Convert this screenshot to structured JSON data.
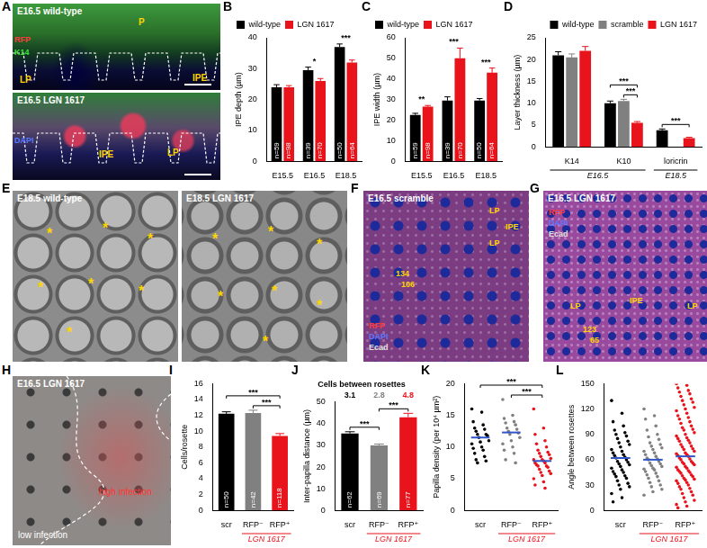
{
  "chart_data": [
    {
      "panel": "B",
      "type": "bar",
      "y_label": "IPE depth (µm)",
      "categories": [
        "E15.5",
        "E16.5",
        "E18.5"
      ],
      "series": [
        {
          "name": "wild-type",
          "color": "#000000",
          "values": [
            24,
            29.5,
            37
          ],
          "errors": [
            0.8,
            1,
            1
          ],
          "n_labels": [
            "n=59",
            "n=39",
            "n=50"
          ]
        },
        {
          "name": "LGN 1617",
          "color": "#e8131b",
          "values": [
            24,
            26,
            32
          ],
          "errors": [
            0.5,
            0.8,
            0.8
          ],
          "n_labels": [
            "n=98",
            "n=70",
            "n=64"
          ]
        }
      ],
      "significance": [
        null,
        "*",
        "***"
      ],
      "ylim": [
        0,
        40
      ],
      "yticks": [
        0,
        10,
        20,
        30,
        40
      ],
      "grid": false,
      "legend": "upper left"
    },
    {
      "panel": "C",
      "type": "bar",
      "y_label": "IPE width (µm)",
      "categories": [
        "E15.5",
        "E16.5",
        "E18.5"
      ],
      "series": [
        {
          "name": "wild-type",
          "color": "#000000",
          "values": [
            22.5,
            29.5,
            29.5
          ],
          "errors": [
            0.8,
            1.8,
            1
          ],
          "n_labels": [
            "n=59",
            "n=39",
            "n=50"
          ]
        },
        {
          "name": "LGN 1617",
          "color": "#e8131b",
          "values": [
            26.5,
            50,
            43
          ],
          "errors": [
            0.6,
            5,
            2.3
          ],
          "n_labels": [
            "n=98",
            "n=70",
            "n=64"
          ]
        }
      ],
      "significance": [
        "**",
        "***",
        "***"
      ],
      "ylim": [
        0,
        60
      ],
      "yticks": [
        0,
        10,
        20,
        30,
        40,
        50,
        60
      ],
      "grid": false,
      "legend": "upper left"
    },
    {
      "panel": "D",
      "type": "bar",
      "y_label": "Layer thickness (µm)",
      "categories": [
        "K14",
        "K10",
        "loricrin"
      ],
      "category_groups": [
        {
          "label": "E16.5",
          "categories": [
            "K14",
            "K10"
          ],
          "color": "#000000"
        },
        {
          "label": "E18.5",
          "categories": [
            "loricrin"
          ],
          "color": "#000000"
        }
      ],
      "series": [
        {
          "name": "wild-type",
          "color": "#000000",
          "values": [
            21,
            10,
            3.8
          ],
          "errors": [
            0.8,
            0.5,
            0.3
          ]
        },
        {
          "name": "scramble",
          "color": "#808080",
          "values": [
            20.5,
            10.5,
            null
          ],
          "errors": [
            0.8,
            0.4,
            null
          ]
        },
        {
          "name": "LGN 1617",
          "color": "#e8131b",
          "values": [
            22,
            5.5,
            2
          ],
          "errors": [
            1,
            0.3,
            0.2
          ]
        }
      ],
      "significance": [
        {
          "category": "K10",
          "from": "scramble",
          "to": "LGN 1617",
          "label": "***"
        },
        {
          "category": "K10",
          "from": "wild-type",
          "to": "LGN 1617",
          "label": "***"
        },
        {
          "category": "loricrin",
          "from": "wild-type",
          "to": "LGN 1617",
          "label": "***"
        }
      ],
      "ylim": [
        0,
        25
      ],
      "yticks": [
        0,
        5,
        10,
        15,
        20,
        25
      ],
      "grid": false,
      "legend": "upper right"
    },
    {
      "panel": "I",
      "type": "bar",
      "y_label": "Cells/rosette",
      "categories": [
        "scr",
        "RFP⁻",
        "RFP⁺"
      ],
      "category_groups": [
        {
          "label": "LGN 1617",
          "categories": [
            "RFP⁻",
            "RFP⁺"
          ],
          "color": "#e8131b"
        }
      ],
      "values": [
        12.2,
        12.3,
        9.4
      ],
      "colors": [
        "#000000",
        "#808080",
        "#e8131b"
      ],
      "errors": [
        0.25,
        0.35,
        0.3
      ],
      "n_labels": [
        "n=50",
        "n=42",
        "n=118"
      ],
      "significance": [
        {
          "from": "RFP⁻",
          "to": "RFP⁺",
          "label": "***"
        },
        {
          "from": "scr",
          "to": "RFP⁺",
          "label": "***"
        }
      ],
      "ylim": [
        0,
        16
      ],
      "yticks": [
        0,
        2,
        4,
        6,
        8,
        10,
        12,
        14,
        16
      ],
      "grid": false
    },
    {
      "panel": "J",
      "type": "bar",
      "title": "Cells between rosettes",
      "y_label": "Inter-papilla distance (µm)",
      "categories": [
        "scr",
        "RFP⁻",
        "RFP⁺"
      ],
      "category_groups": [
        {
          "label": "LGN 1617",
          "categories": [
            "RFP⁻",
            "RFP⁺"
          ],
          "color": "#e8131b"
        }
      ],
      "cells_between": [
        3.1,
        2.8,
        4.8
      ],
      "values": [
        35.5,
        30,
        43
      ],
      "colors": [
        "#000000",
        "#808080",
        "#e8131b"
      ],
      "errors": [
        0.8,
        0.6,
        1.8
      ],
      "n_labels": [
        "n=62",
        "n=69",
        "n=77"
      ],
      "significance": [
        {
          "from": "scr",
          "to": "RFP⁻",
          "label": "***"
        },
        {
          "from": "RFP⁻",
          "to": "RFP⁺",
          "label": "***"
        }
      ],
      "ylim": [
        0,
        50
      ],
      "yticks": [
        0,
        10,
        20,
        30,
        40,
        50
      ],
      "grid": false
    },
    {
      "panel": "K",
      "type": "scatter",
      "y_label": "Papilla density (per 10⁴ µm²)",
      "categories": [
        "scr",
        "RFP⁻",
        "RFP⁺"
      ],
      "category_groups": [
        {
          "label": "LGN 1617",
          "categories": [
            "RFP⁻",
            "RFP⁺"
          ],
          "color": "#e8131b"
        }
      ],
      "colors": [
        "#000000",
        "#808080",
        "#e8131b"
      ],
      "values": [
        [
          16,
          15.5,
          14,
          13.5,
          13,
          12.8,
          12.5,
          12,
          12,
          11.8,
          11.5,
          11,
          10.8,
          10.5,
          10,
          9.8,
          9.5,
          9,
          8.5,
          8,
          7.8,
          7.5
        ],
        [
          17.5,
          15,
          14.5,
          14,
          13.8,
          13.5,
          13,
          12.8,
          12.5,
          12.2,
          12,
          11.5,
          11,
          10.5,
          10,
          9.5,
          9,
          8,
          7.5
        ],
        [
          16,
          13,
          12,
          11,
          10.5,
          10,
          9.5,
          9.2,
          9,
          8.8,
          8.5,
          8.2,
          8,
          8,
          7.8,
          7.5,
          7.5,
          7.2,
          7,
          7,
          6.8,
          6.5,
          6.2,
          6,
          5.8,
          5.5,
          5,
          4.5,
          4,
          3.5
        ]
      ],
      "means": [
        11.5,
        12.3,
        7.8
      ],
      "significance": [
        {
          "from": "RFP⁻",
          "to": "RFP⁺",
          "label": "***"
        },
        {
          "from": "scr",
          "to": "RFP⁺",
          "label": "***"
        }
      ],
      "ylim": [
        0,
        20
      ],
      "yticks": [
        0,
        5,
        10,
        15,
        20
      ],
      "grid": false
    },
    {
      "panel": "L",
      "type": "scatter",
      "y_label": "Angle between rosettes",
      "categories": [
        "scr",
        "RFP⁻",
        "RFP⁺"
      ],
      "category_groups": [
        {
          "label": "LGN 1617",
          "categories": [
            "RFP⁻",
            "RFP⁺"
          ],
          "color": "#e8131b"
        }
      ],
      "colors": [
        "#000000",
        "#808080",
        "#e8131b"
      ],
      "values": [
        [
          130,
          115,
          105,
          100,
          95,
          92,
          90,
          88,
          85,
          82,
          80,
          78,
          75,
          72,
          70,
          68,
          66,
          65,
          63,
          62,
          60,
          58,
          57,
          55,
          54,
          52,
          50,
          48,
          46,
          45,
          43,
          41,
          40,
          38,
          35,
          32,
          30,
          28,
          25,
          20,
          15,
          10
        ],
        [
          120,
          112,
          108,
          100,
          95,
          90,
          87,
          84,
          80,
          78,
          76,
          74,
          72,
          70,
          68,
          66,
          64,
          62,
          61,
          60,
          58,
          56,
          55,
          53,
          52,
          50,
          49,
          48,
          46,
          44,
          42,
          40,
          38,
          35,
          33,
          30,
          28,
          25,
          22,
          18
        ],
        [
          150,
          148,
          145,
          142,
          140,
          138,
          135,
          132,
          130,
          128,
          125,
          122,
          120,
          118,
          115,
          112,
          110,
          108,
          105,
          103,
          100,
          98,
          96,
          95,
          92,
          90,
          88,
          86,
          85,
          83,
          82,
          80,
          78,
          76,
          75,
          73,
          72,
          70,
          68,
          67,
          66,
          65,
          64,
          62,
          61,
          60,
          58,
          57,
          56,
          55,
          54,
          52,
          51,
          50,
          48,
          47,
          46,
          45,
          44,
          42,
          41,
          40,
          38,
          37,
          36,
          35,
          33,
          32,
          30,
          28,
          26,
          25,
          22,
          20,
          18,
          15,
          12,
          10,
          7,
          5,
          3
        ]
      ],
      "means": [
        62,
        60,
        64
      ],
      "ylim": [
        0,
        150
      ],
      "yticks": [
        0,
        30,
        60,
        90,
        120,
        150
      ],
      "grid": false
    }
  ],
  "images": [
    {
      "panel": "A",
      "subpanels": [
        {
          "title": "E16.5 wild-type",
          "labels": [
            "P",
            "LP",
            "IPE"
          ]
        },
        {
          "title": "E16.5 LGN 1617",
          "labels": [
            "IPE",
            "LP"
          ]
        }
      ],
      "channels": [
        {
          "name": "RFP",
          "color": "#ff3a3a"
        },
        {
          "name": "K14",
          "color": "#3ee03e"
        },
        {
          "name": "DAPI",
          "color": "#5a78ff"
        }
      ]
    },
    {
      "panel": "E",
      "subpanels": [
        {
          "title": "E18.5 wild-type",
          "labels": [
            "*",
            "*",
            "*",
            "*",
            "*",
            "*",
            "*"
          ]
        },
        {
          "title": "E18.5 LGN 1617",
          "labels": [
            "*",
            "*",
            "*",
            "*",
            "*",
            "*",
            "*"
          ]
        }
      ]
    },
    {
      "panel": "F",
      "title": "E16.5 scramble",
      "labels": [
        "LP",
        "IPE",
        "LP",
        "134",
        "106"
      ],
      "channels": [
        {
          "name": "RFP",
          "color": "#ff3a3a"
        },
        {
          "name": "DAPI",
          "color": "#5a78ff"
        },
        {
          "name": "Ecad",
          "color": "#e0e0e0"
        }
      ]
    },
    {
      "panel": "G",
      "title": "E16.5 LGN 1617",
      "labels": [
        "LP",
        "IPE",
        "LP",
        "123",
        "65"
      ],
      "channels": [
        {
          "name": "RFP",
          "color": "#ff3a3a"
        },
        {
          "name": "DAPI",
          "color": "#5a78ff"
        },
        {
          "name": "Ecad",
          "color": "#e0e0e0"
        }
      ]
    },
    {
      "panel": "H",
      "title": "E16.5 LGN 1617",
      "labels": [
        "high infection",
        "low infection"
      ]
    }
  ]
}
